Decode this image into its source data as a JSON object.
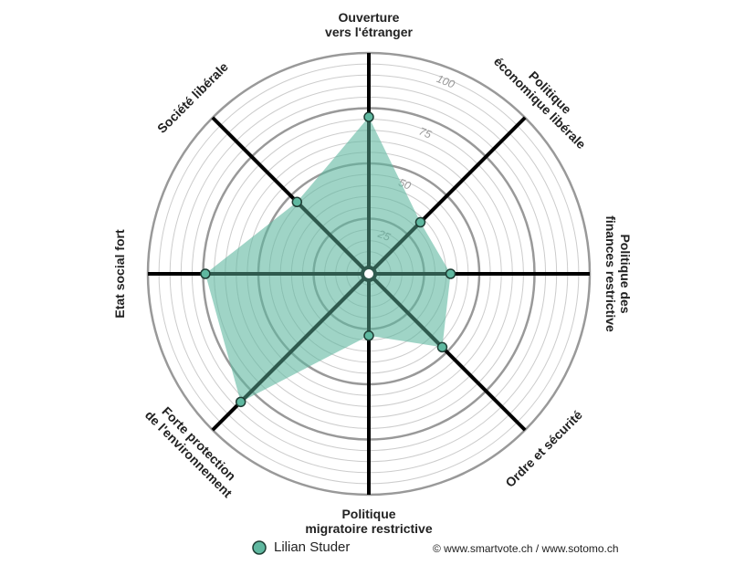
{
  "chart_data": {
    "type": "radar",
    "categories": [
      [
        "Ouverture",
        "vers l'étranger"
      ],
      [
        "Politique",
        "économique libérale"
      ],
      [
        "Politique des",
        "finances restrictive"
      ],
      [
        "Ordre et sécurité"
      ],
      [
        "Politique",
        "migratoire restrictive"
      ],
      [
        "Forte protection",
        "de l'environnement"
      ],
      [
        "Etat social fort"
      ],
      [
        "Société libérale"
      ]
    ],
    "series": [
      {
        "name": "Lilian Studer",
        "color": "#5fb8a0",
        "values": [
          71,
          33,
          37,
          47,
          28,
          82,
          74,
          46
        ]
      }
    ],
    "ylim": [
      0,
      100
    ],
    "yticks": [
      25,
      50,
      75,
      100
    ],
    "grid": true,
    "credit": "© www.smartvote.ch / www.sotomo.ch"
  }
}
